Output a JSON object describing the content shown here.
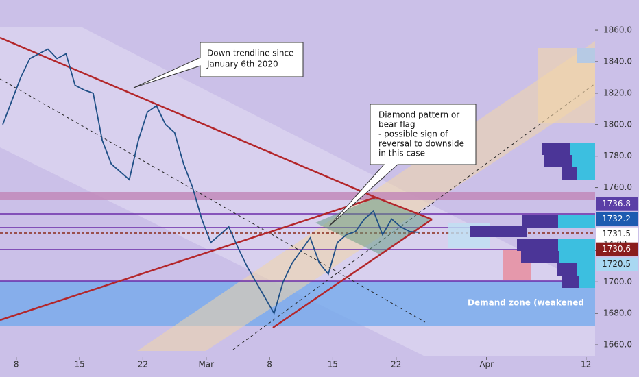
{
  "chart_data": {
    "type": "line",
    "x": [
      -1.5,
      -0.5,
      0.5,
      1.5,
      2.5,
      3.5,
      4.5,
      5.5,
      6.5,
      7.5,
      8.5,
      9.5,
      10.5,
      11.5,
      12.5,
      13.5,
      14.5,
      15.5,
      16.5,
      17.5,
      18.5,
      19.5,
      20.5,
      21.5,
      22.5,
      23.5,
      24.5,
      25.5,
      26.5,
      27.5,
      28.5,
      29.5,
      30.5,
      31.5,
      32.5,
      33.5,
      34.5,
      35.5,
      36.5,
      37.5,
      38.5,
      39.5,
      40.5,
      41.5,
      42.5,
      43.5,
      44.5
    ],
    "values": [
      1800,
      1815,
      1830,
      1842,
      1845,
      1848,
      1842,
      1845,
      1825,
      1822,
      1820,
      1790,
      1775,
      1770,
      1765,
      1790,
      1808,
      1812,
      1800,
      1795,
      1775,
      1760,
      1740,
      1725,
      1730,
      1735,
      1722,
      1710,
      1700,
      1690,
      1680,
      1700,
      1712,
      1720,
      1728,
      1712,
      1705,
      1725,
      1730,
      1732,
      1740,
      1745,
      1730,
      1740,
      1735,
      1732,
      1731.5
    ],
    "color": "#1f4f86",
    "xlim": [
      -1.8,
      64.0
    ],
    "xticks": [
      {
        "value": 0,
        "label": "8"
      },
      {
        "value": 7,
        "label": "15"
      },
      {
        "value": 14,
        "label": "22"
      },
      {
        "value": 21,
        "label": "Mar"
      },
      {
        "value": 28,
        "label": "8"
      },
      {
        "value": 35,
        "label": "15"
      },
      {
        "value": 42,
        "label": "22"
      },
      {
        "value": 52,
        "label": "Apr"
      },
      {
        "value": 63,
        "label": "12"
      }
    ],
    "ylim": [
      1652.2,
      1879.2
    ],
    "yticks": [
      {
        "value": 1660,
        "label": "1660.0"
      },
      {
        "value": 1680,
        "label": "1680.0"
      },
      {
        "value": 1700,
        "label": "1700.0"
      },
      {
        "value": 1720,
        "label": "1720.0"
      },
      {
        "value": 1740,
        "label": "1740.0"
      },
      {
        "value": 1760,
        "label": "1760.0"
      },
      {
        "value": 1780,
        "label": "1780.0"
      },
      {
        "value": 1800,
        "label": "1800.0"
      },
      {
        "value": 1820,
        "label": "1820.0"
      },
      {
        "value": 1840,
        "label": "1840.0"
      },
      {
        "value": 1860,
        "label": "1860.0"
      }
    ],
    "price_labels": [
      {
        "value": 1736.8,
        "color": "#5a3ea6",
        "text_color": "#ffffff"
      },
      {
        "value": 1732.2,
        "color": "#1d5bb0",
        "text_color": "#ffffff"
      },
      {
        "value": 1731.5,
        "color": "#ffffff",
        "text_color": "#222222"
      },
      {
        "value": 1730.6,
        "color": "#8a1d1d",
        "text_color": "#ffffff"
      },
      {
        "value": 1720.5,
        "color": "#a9d8f2",
        "text_color": "#222222"
      }
    ],
    "countdown": "14:02",
    "annotations": {
      "trendline": [
        "Down trendline since",
        "January 6th 2020"
      ],
      "diamond": [
        "Diamond pattern or",
        "bear flag",
        "- possible sign of",
        "reversal to downside",
        "in this case"
      ],
      "demand_zone": "Demand zone (weakened"
    }
  }
}
